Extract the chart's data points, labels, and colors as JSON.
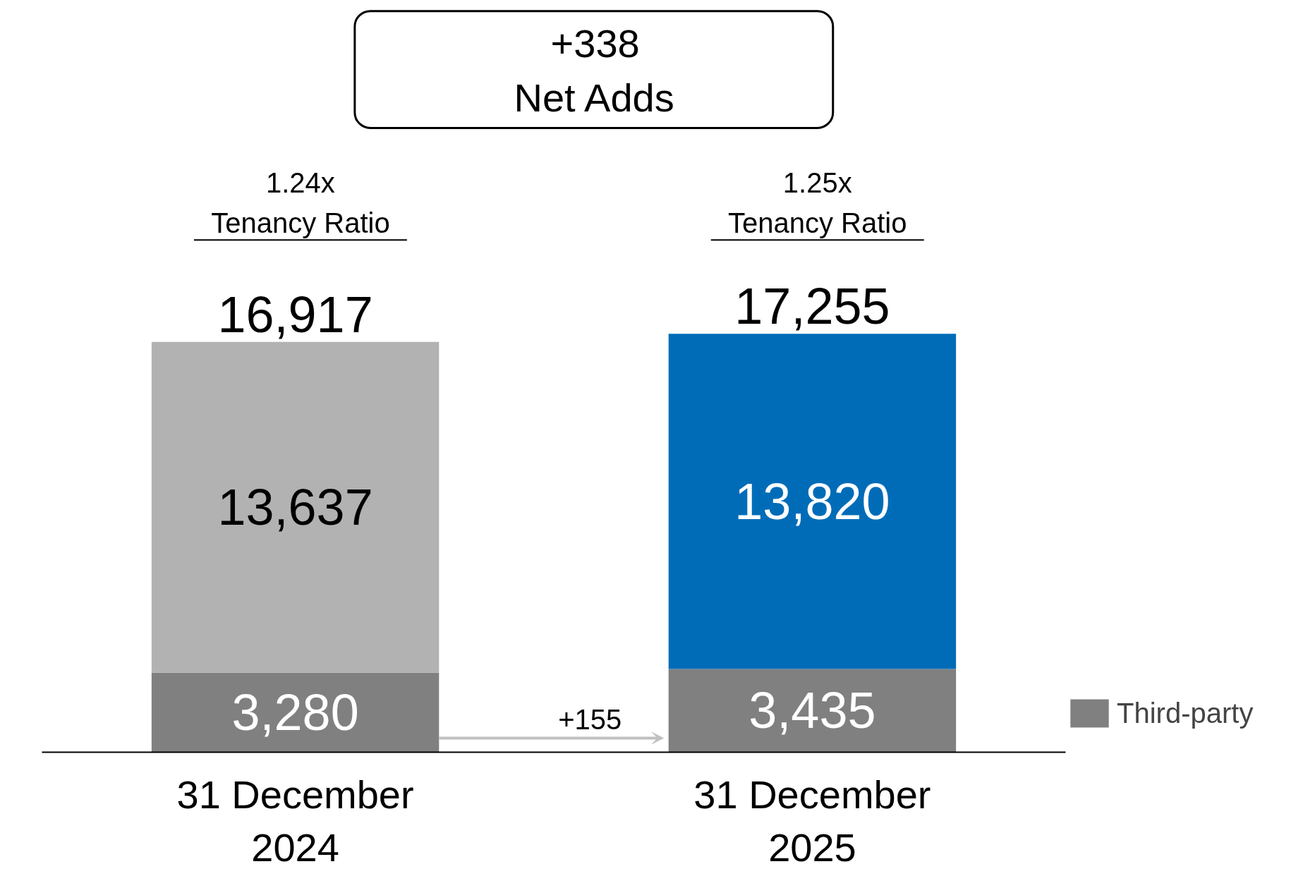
{
  "chart_data": {
    "type": "bar",
    "stacked": true,
    "tick_labels": "x",
    "grid": false,
    "legend": "bottom right",
    "categories": [
      "31 December 2024",
      "31 December 2025"
    ],
    "series": [
      {
        "name": "Third-party",
        "color": "#808080",
        "values": [
          3280,
          3435
        ],
        "value_labels": [
          "3,280",
          "3,435"
        ]
      },
      {
        "colors": [
          "#b2b2b2",
          "#006cb8"
        ],
        "values": [
          13637,
          13820
        ],
        "value_labels": [
          "13,637",
          "13,820"
        ]
      }
    ],
    "totals": [
      "16,917",
      "17,255"
    ],
    "annotations": [
      "+338\nNet Adds",
      "1.24x\nTenancy Ratio",
      "1.25x\nTenancy Ratio",
      "+155"
    ]
  }
}
